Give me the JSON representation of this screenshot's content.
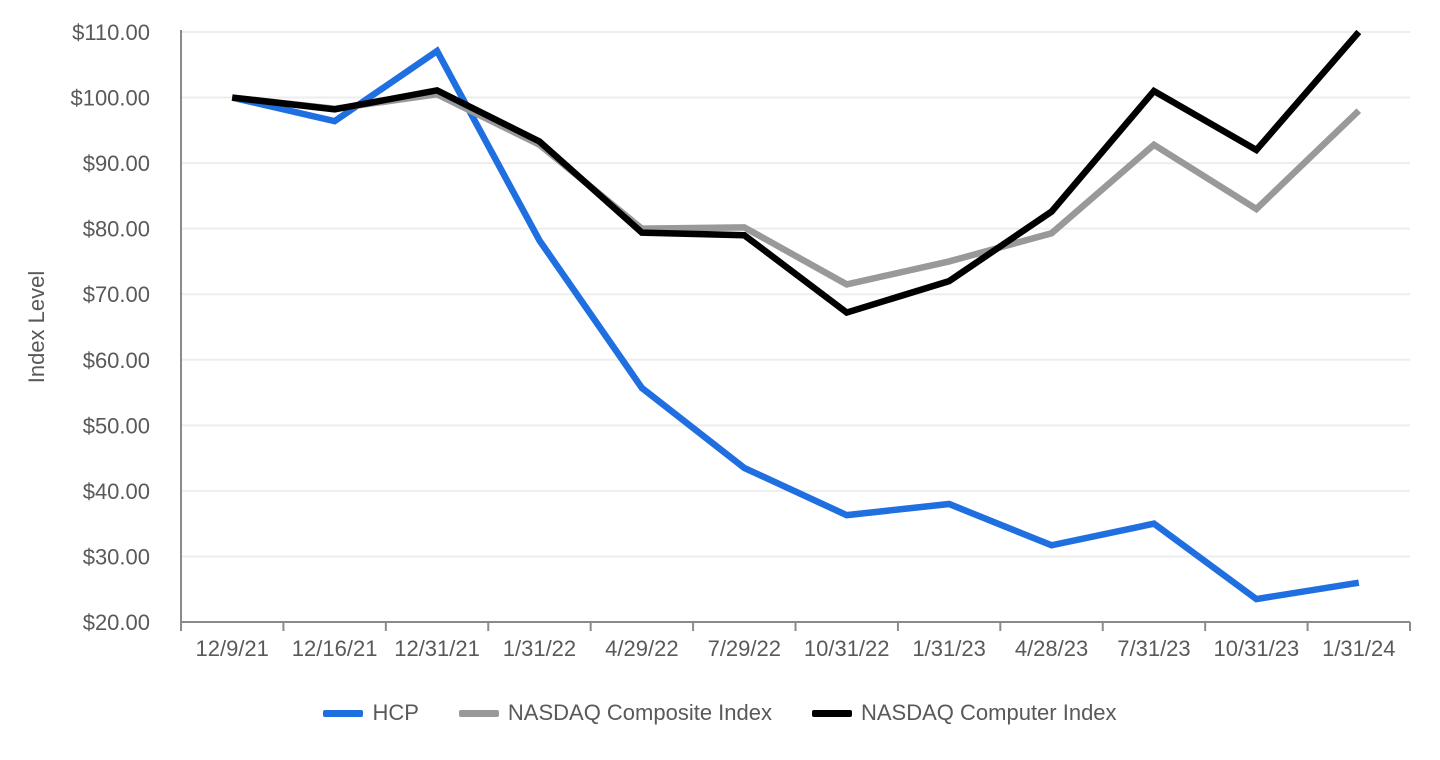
{
  "chart_data": {
    "type": "line",
    "title": "",
    "xlabel": "",
    "ylabel": "Index Level",
    "ylim": [
      20,
      110
    ],
    "ytick_step": 10,
    "ytick_labels": [
      "$20.00",
      "$30.00",
      "$40.00",
      "$50.00",
      "$60.00",
      "$70.00",
      "$80.00",
      "$90.00",
      "$100.00",
      "$110.00"
    ],
    "grid": true,
    "legend_position": "bottom",
    "categories": [
      "12/9/21",
      "12/16/21",
      "12/31/21",
      "1/31/22",
      "4/29/22",
      "7/29/22",
      "10/31/22",
      "1/31/23",
      "4/28/23",
      "7/31/23",
      "10/31/23",
      "1/31/24"
    ],
    "series": [
      {
        "name": "HCP",
        "color": "#1F6FE0",
        "values": [
          100.0,
          96.4,
          107.1,
          78.2,
          55.7,
          43.5,
          36.3,
          38.0,
          31.7,
          35.0,
          23.5,
          26.0
        ]
      },
      {
        "name": "NASDAQ Composite Index",
        "color": "#97999B",
        "values": [
          100.0,
          98.3,
          100.5,
          92.8,
          80.0,
          80.2,
          71.5,
          75.0,
          79.3,
          92.8,
          83.0,
          98.0
        ]
      },
      {
        "name": "NASDAQ Computer Index",
        "color": "#000000",
        "values": [
          100.0,
          98.2,
          101.1,
          93.3,
          79.4,
          79.0,
          67.2,
          72.0,
          82.6,
          101.0,
          92.0,
          110.0
        ]
      }
    ]
  },
  "style_colors": {
    "axis_line": "#8A8A8A",
    "gridline": "#EDEDED",
    "tick_text": "#58595B"
  }
}
